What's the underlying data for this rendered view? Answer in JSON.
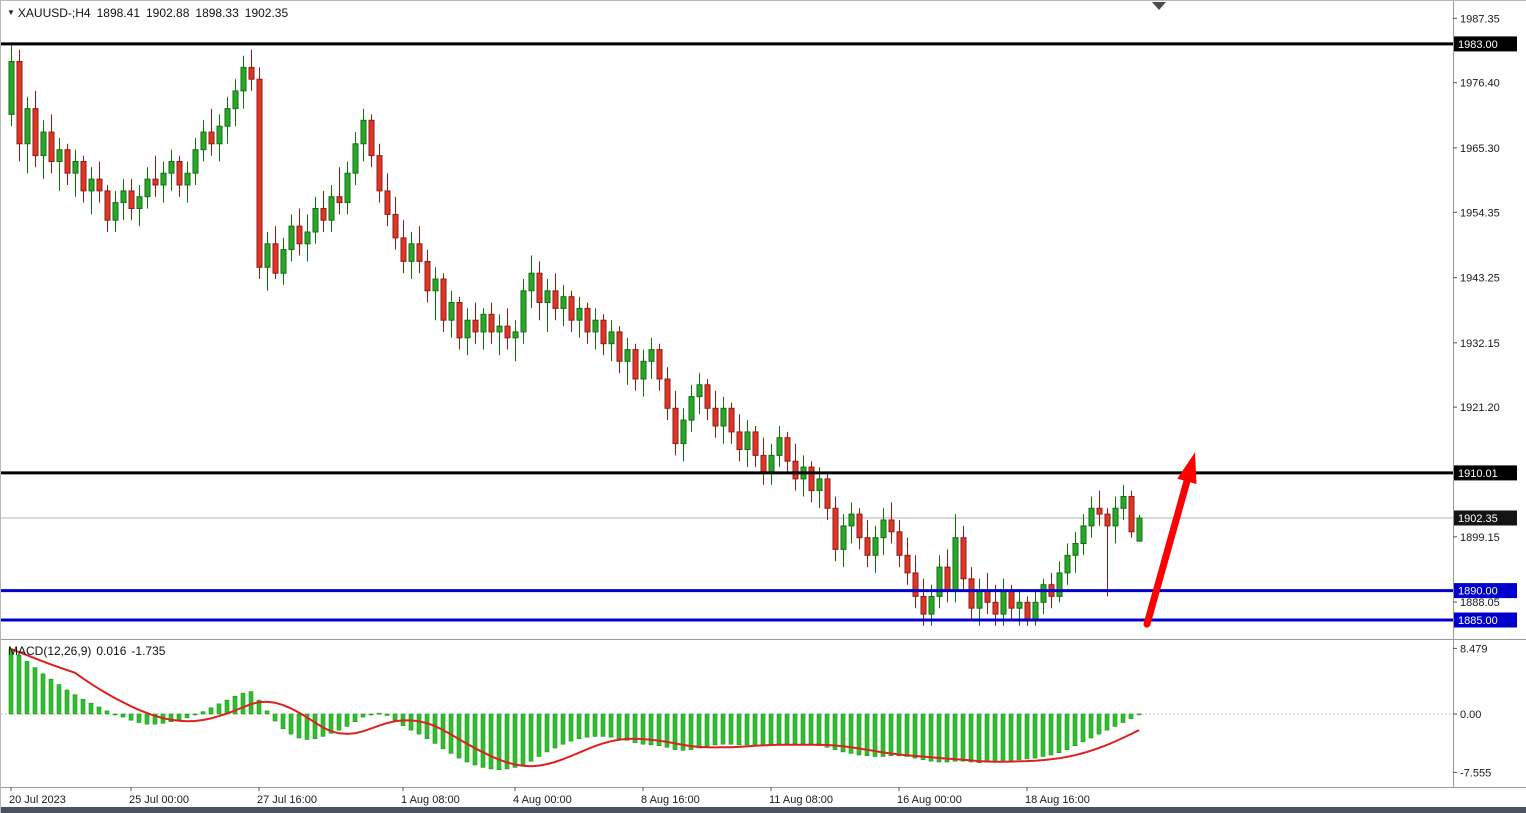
{
  "header": {
    "symbol": "XAUUSD-;H4",
    "open": "1898.41",
    "high": "1902.88",
    "low": "1898.33",
    "close": "1902.35"
  },
  "icons": {
    "collapse_triangle": "▼"
  },
  "macd_header": {
    "name": "MACD(12,26,9)",
    "main_value": "0.016",
    "signal_value": "-1.735"
  },
  "colors": {
    "bull": "#2aa62a",
    "bull_border": "#10700f",
    "bear": "#df3528",
    "bear_border": "#8f1d14",
    "histogram": "#2fbf2f",
    "histogram_border": "#1d951d",
    "signal": "#e01f1f",
    "bid_line": "#b3b3b3",
    "axis_text": "#1a1a1a",
    "frame": "#9a9a9a",
    "bottom_strip": "#4a5160",
    "shift_marker": "#4a4a4a"
  },
  "chart_data": {
    "type": "candlestick",
    "title": "XAUUSD-;H4",
    "symbol": "XAUUSD",
    "timeframe": "H4",
    "price_axis": {
      "ylim": [
        1881.8,
        1990.3
      ],
      "gridline_labels": [
        {
          "text": "1987.35",
          "value": 1987.35
        },
        {
          "text": "1976.40",
          "value": 1976.4
        },
        {
          "text": "1965.30",
          "value": 1965.3
        },
        {
          "text": "1954.35",
          "value": 1954.35
        },
        {
          "text": "1943.25",
          "value": 1943.25
        },
        {
          "text": "1932.15",
          "value": 1932.15
        },
        {
          "text": "1921.20",
          "value": 1921.2
        },
        {
          "text": "1899.15",
          "value": 1899.15
        },
        {
          "text": "1888.05",
          "value": 1888.05
        }
      ]
    },
    "levels": [
      {
        "text": "1983.00",
        "value": 1983.0,
        "color": "#000000",
        "width": 3,
        "kind": "resistance"
      },
      {
        "text": "1910.01",
        "value": 1910.01,
        "color": "#000000",
        "width": 3,
        "kind": "resistance"
      },
      {
        "text": "1902.35",
        "value": 1902.35,
        "color": "#b3b3b3",
        "width": 1,
        "label_bg": "#141414",
        "kind": "bid"
      },
      {
        "text": "1890.00",
        "value": 1890.0,
        "color": "#0000cc",
        "width": 3,
        "kind": "support"
      },
      {
        "text": "1885.00",
        "value": 1885.0,
        "color": "#0000cc",
        "width": 3,
        "kind": "support"
      }
    ],
    "time_ticks": [
      {
        "text": "20 Jul 2023",
        "index": 0
      },
      {
        "text": "25 Jul 00:00",
        "index": 15
      },
      {
        "text": "27 Jul 16:00",
        "index": 31
      },
      {
        "text": "1 Aug 08:00",
        "index": 49
      },
      {
        "text": "4 Aug 00:00",
        "index": 63
      },
      {
        "text": "8 Aug 16:00",
        "index": 79
      },
      {
        "text": "11 Aug 08:00",
        "index": 95
      },
      {
        "text": "16 Aug 00:00",
        "index": 111
      },
      {
        "text": "18 Aug 16:00",
        "index": 127
      }
    ],
    "candles": [
      [
        1971,
        1983,
        1969,
        1980
      ],
      [
        1980,
        1982,
        1963,
        1966
      ],
      [
        1966,
        1974,
        1961,
        1972
      ],
      [
        1972,
        1975,
        1962,
        1964
      ],
      [
        1964,
        1970,
        1960,
        1968
      ],
      [
        1968,
        1971,
        1961,
        1963
      ],
      [
        1963,
        1967,
        1958,
        1965
      ],
      [
        1965,
        1966,
        1959,
        1961
      ],
      [
        1961,
        1965,
        1957,
        1963
      ],
      [
        1963,
        1964,
        1956,
        1958
      ],
      [
        1958,
        1962,
        1954,
        1960
      ],
      [
        1960,
        1963,
        1956,
        1958
      ],
      [
        1958,
        1959,
        1951,
        1953
      ],
      [
        1953,
        1958,
        1951,
        1956
      ],
      [
        1956,
        1960,
        1953,
        1958
      ],
      [
        1958,
        1960,
        1953,
        1955
      ],
      [
        1955,
        1959,
        1952,
        1957
      ],
      [
        1957,
        1962,
        1955,
        1960
      ],
      [
        1960,
        1964,
        1957,
        1959
      ],
      [
        1959,
        1963,
        1956,
        1961
      ],
      [
        1961,
        1965,
        1958,
        1963
      ],
      [
        1963,
        1964,
        1957,
        1959
      ],
      [
        1959,
        1963,
        1956,
        1961
      ],
      [
        1961,
        1967,
        1959,
        1965
      ],
      [
        1965,
        1970,
        1963,
        1968
      ],
      [
        1968,
        1972,
        1964,
        1966
      ],
      [
        1966,
        1971,
        1963,
        1969
      ],
      [
        1969,
        1974,
        1966,
        1972
      ],
      [
        1972,
        1977,
        1969,
        1975
      ],
      [
        1975,
        1981,
        1972,
        1979
      ],
      [
        1979,
        1982,
        1975,
        1977
      ],
      [
        1977,
        1979,
        1943,
        1945
      ],
      [
        1945,
        1951,
        1941,
        1949
      ],
      [
        1949,
        1952,
        1943,
        1944
      ],
      [
        1944,
        1950,
        1942,
        1948
      ],
      [
        1948,
        1954,
        1946,
        1952
      ],
      [
        1952,
        1955,
        1947,
        1949
      ],
      [
        1949,
        1954,
        1946,
        1951
      ],
      [
        1951,
        1957,
        1949,
        1955
      ],
      [
        1955,
        1958,
        1951,
        1953
      ],
      [
        1953,
        1959,
        1951,
        1957
      ],
      [
        1957,
        1962,
        1954,
        1956
      ],
      [
        1956,
        1963,
        1954,
        1961
      ],
      [
        1961,
        1968,
        1959,
        1966
      ],
      [
        1966,
        1972,
        1963,
        1970
      ],
      [
        1970,
        1971,
        1962,
        1964
      ],
      [
        1964,
        1966,
        1956,
        1958
      ],
      [
        1958,
        1961,
        1952,
        1954
      ],
      [
        1954,
        1957,
        1948,
        1950
      ],
      [
        1950,
        1953,
        1944,
        1946
      ],
      [
        1946,
        1951,
        1943,
        1949
      ],
      [
        1949,
        1952,
        1944,
        1946
      ],
      [
        1946,
        1948,
        1939,
        1941
      ],
      [
        1941,
        1945,
        1936,
        1943
      ],
      [
        1943,
        1944,
        1934,
        1936
      ],
      [
        1936,
        1941,
        1933,
        1939
      ],
      [
        1939,
        1940,
        1931,
        1933
      ],
      [
        1933,
        1938,
        1930,
        1936
      ],
      [
        1936,
        1939,
        1932,
        1934
      ],
      [
        1934,
        1938,
        1931,
        1937
      ],
      [
        1937,
        1939,
        1932,
        1934
      ],
      [
        1934,
        1937,
        1930,
        1935
      ],
      [
        1935,
        1938,
        1931,
        1933
      ],
      [
        1933,
        1936,
        1929,
        1934
      ],
      [
        1934,
        1943,
        1932,
        1941
      ],
      [
        1941,
        1947,
        1938,
        1944
      ],
      [
        1944,
        1946,
        1936,
        1939
      ],
      [
        1939,
        1943,
        1934,
        1941
      ],
      [
        1941,
        1944,
        1936,
        1938
      ],
      [
        1938,
        1942,
        1935,
        1940
      ],
      [
        1940,
        1941,
        1934,
        1936
      ],
      [
        1936,
        1940,
        1933,
        1938
      ],
      [
        1938,
        1939,
        1932,
        1934
      ],
      [
        1934,
        1938,
        1931,
        1936
      ],
      [
        1936,
        1937,
        1930,
        1932
      ],
      [
        1932,
        1936,
        1929,
        1934
      ],
      [
        1934,
        1935,
        1927,
        1929
      ],
      [
        1929,
        1933,
        1925,
        1931
      ],
      [
        1931,
        1932,
        1924,
        1926
      ],
      [
        1926,
        1931,
        1923,
        1929
      ],
      [
        1929,
        1933,
        1926,
        1931
      ],
      [
        1931,
        1932,
        1924,
        1926
      ],
      [
        1926,
        1928,
        1919,
        1921
      ],
      [
        1921,
        1924,
        1913,
        1915
      ],
      [
        1915,
        1921,
        1912,
        1919
      ],
      [
        1919,
        1925,
        1917,
        1923
      ],
      [
        1923,
        1927,
        1920,
        1925
      ],
      [
        1925,
        1926,
        1919,
        1921
      ],
      [
        1921,
        1924,
        1916,
        1918
      ],
      [
        1918,
        1923,
        1915,
        1921
      ],
      [
        1921,
        1922,
        1915,
        1917
      ],
      [
        1917,
        1920,
        1912,
        1914
      ],
      [
        1914,
        1919,
        1911,
        1917
      ],
      [
        1917,
        1918,
        1911,
        1913
      ],
      [
        1913,
        1916,
        1908,
        1910
      ],
      [
        1910,
        1915,
        1908,
        1913
      ],
      [
        1913,
        1918,
        1911,
        1916
      ],
      [
        1916,
        1917,
        1910,
        1912
      ],
      [
        1912,
        1915,
        1907,
        1909
      ],
      [
        1909,
        1913,
        1906,
        1911
      ],
      [
        1911,
        1912,
        1905,
        1907
      ],
      [
        1907,
        1911,
        1904,
        1909
      ],
      [
        1909,
        1910,
        1902,
        1904
      ],
      [
        1904,
        1906,
        1895,
        1897
      ],
      [
        1897,
        1903,
        1894,
        1901
      ],
      [
        1901,
        1905,
        1898,
        1903
      ],
      [
        1903,
        1904,
        1897,
        1899
      ],
      [
        1899,
        1902,
        1894,
        1896
      ],
      [
        1896,
        1901,
        1893,
        1899
      ],
      [
        1899,
        1904,
        1896,
        1902
      ],
      [
        1902,
        1905,
        1898,
        1900
      ],
      [
        1900,
        1902,
        1894,
        1896
      ],
      [
        1896,
        1899,
        1891,
        1893
      ],
      [
        1893,
        1896,
        1887,
        1889
      ],
      [
        1889,
        1892,
        1884,
        1886
      ],
      [
        1886,
        1891,
        1884,
        1889
      ],
      [
        1889,
        1896,
        1887,
        1894
      ],
      [
        1894,
        1897,
        1888,
        1890
      ],
      [
        1890,
        1903,
        1888,
        1899
      ],
      [
        1899,
        1901,
        1890,
        1892
      ],
      [
        1892,
        1894,
        1885,
        1887
      ],
      [
        1887,
        1892,
        1884,
        1890
      ],
      [
        1890,
        1893,
        1886,
        1888
      ],
      [
        1888,
        1891,
        1884,
        1886
      ],
      [
        1886,
        1892,
        1884,
        1890
      ],
      [
        1890,
        1891,
        1885,
        1887
      ],
      [
        1887,
        1890,
        1884,
        1888
      ],
      [
        1888,
        1889,
        1884,
        1885
      ],
      [
        1885,
        1890,
        1884,
        1888
      ],
      [
        1888,
        1892,
        1886,
        1891
      ],
      [
        1891,
        1893,
        1887,
        1889
      ],
      [
        1889,
        1895,
        1888,
        1893
      ],
      [
        1893,
        1898,
        1891,
        1896
      ],
      [
        1896,
        1900,
        1893,
        1898
      ],
      [
        1898,
        1903,
        1896,
        1901
      ],
      [
        1901,
        1906,
        1899,
        1904
      ],
      [
        1904,
        1907,
        1901,
        1903
      ],
      [
        1903,
        1904,
        1889,
        1901
      ],
      [
        1901,
        1906,
        1898,
        1904
      ],
      [
        1904,
        1908,
        1902,
        1906
      ],
      [
        1906,
        1907,
        1899,
        1900
      ],
      [
        1898.41,
        1902.88,
        1898.33,
        1902.35
      ]
    ],
    "macd": {
      "name": "MACD(12,26,9)",
      "main_last": 0.016,
      "signal_last": -1.735,
      "ylim": [
        -9.4,
        9.4
      ],
      "axis_labels": [
        {
          "text": "8.479",
          "value": 8.479
        },
        {
          "text": "0.00",
          "value": 0
        },
        {
          "text": "-7.555",
          "value": -7.555
        }
      ],
      "histogram": [
        8.4,
        7.6,
        6.8,
        6.0,
        5.2,
        4.5,
        3.8,
        3.1,
        2.5,
        1.9,
        1.4,
        0.9,
        0.4,
        0.0,
        -0.4,
        -0.8,
        -1.1,
        -1.3,
        -1.3,
        -1.2,
        -1.0,
        -0.8,
        -0.5,
        -0.1,
        0.3,
        0.8,
        1.3,
        1.8,
        2.3,
        2.7,
        2.9,
        1.8,
        0.4,
        -0.9,
        -1.9,
        -2.6,
        -3.1,
        -3.3,
        -3.2,
        -2.9,
        -2.5,
        -2.1,
        -1.6,
        -1.0,
        -0.4,
        0.0,
        0.1,
        -0.2,
        -0.8,
        -1.5,
        -2.1,
        -2.6,
        -3.2,
        -3.8,
        -4.5,
        -5.1,
        -5.7,
        -6.2,
        -6.6,
        -6.9,
        -7.1,
        -7.2,
        -7.1,
        -6.9,
        -6.6,
        -6.1,
        -5.5,
        -4.9,
        -4.4,
        -3.9,
        -3.5,
        -3.2,
        -3.0,
        -2.9,
        -2.9,
        -3.0,
        -3.2,
        -3.4,
        -3.7,
        -3.9,
        -4.0,
        -4.1,
        -4.3,
        -4.6,
        -4.7,
        -4.6,
        -4.4,
        -4.2,
        -4.0,
        -3.9,
        -3.9,
        -4.0,
        -4.0,
        -4.0,
        -4.1,
        -4.0,
        -3.9,
        -3.9,
        -3.9,
        -3.9,
        -4.0,
        -4.1,
        -4.3,
        -4.6,
        -4.9,
        -5.1,
        -5.3,
        -5.4,
        -5.5,
        -5.5,
        -5.4,
        -5.4,
        -5.5,
        -5.7,
        -5.9,
        -6.1,
        -6.2,
        -6.2,
        -6.1,
        -6.1,
        -6.2,
        -6.3,
        -6.2,
        -6.2,
        -6.1,
        -6.0,
        -5.9,
        -5.8,
        -5.7,
        -5.5,
        -5.3,
        -5.0,
        -4.6,
        -4.1,
        -3.6,
        -3.1,
        -2.6,
        -2.1,
        -1.6,
        -1.1,
        -0.6,
        0.016
      ]
    },
    "annotation_arrow": {
      "from_index": 142,
      "from_price": 1884.3,
      "to_index": 148,
      "to_price": 1913.5,
      "color": "#fe0000"
    }
  }
}
